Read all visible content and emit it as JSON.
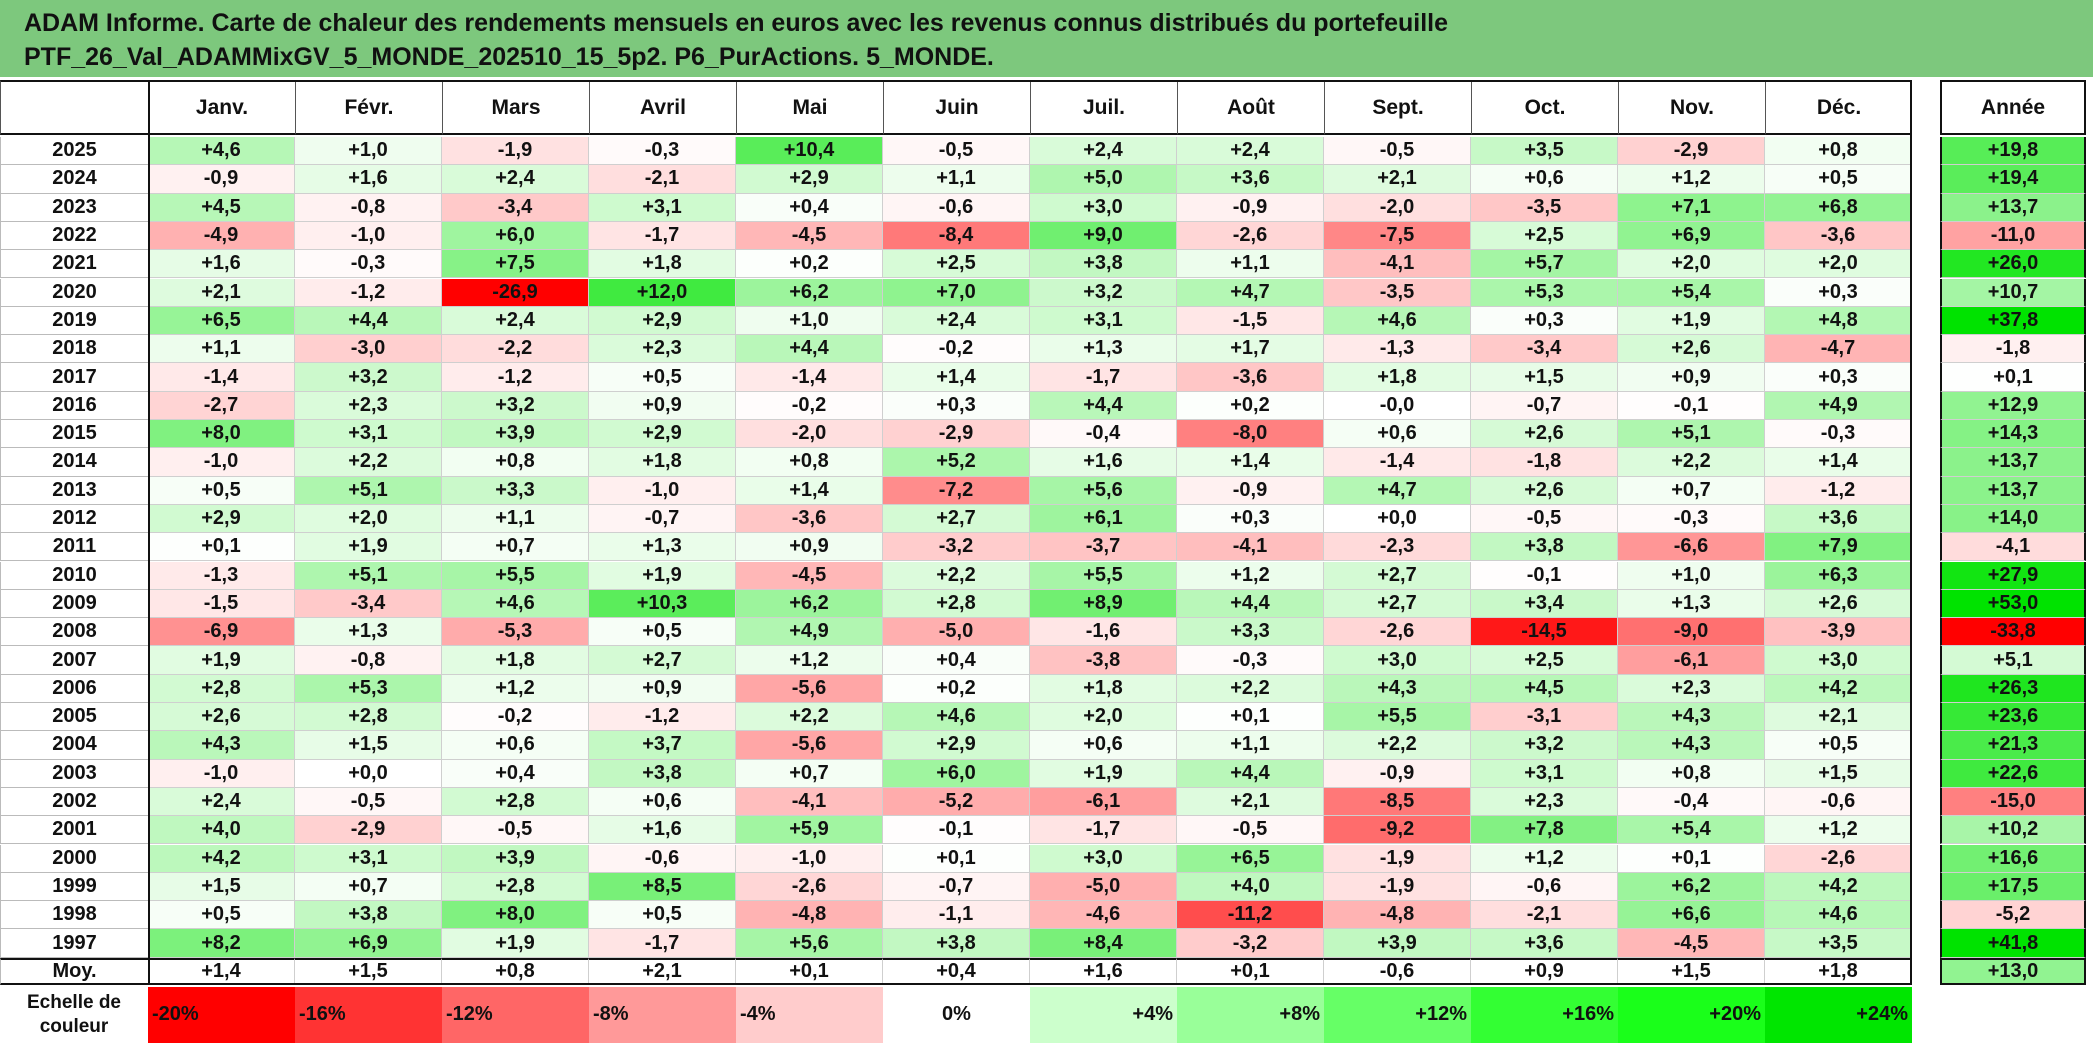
{
  "title_line1": "ADAM Informe. Carte de chaleur des rendements mensuels en euros avec les revenus connus distribués du portefeuille",
  "title_line2": "PTF_26_Val_ADAMMixGV_5_MONDE_202510_15_5p2. P6_PurActions. 5_MONDE.",
  "chart_data": {
    "type": "heatmap",
    "months": [
      "Janv.",
      "Févr.",
      "Mars",
      "Avril",
      "Mai",
      "Juin",
      "Juil.",
      "Août",
      "Sept.",
      "Oct.",
      "Nov.",
      "Déc."
    ],
    "year_header": "Année",
    "rows": [
      {
        "year": "2025",
        "values": [
          "+4,6",
          "+1,0",
          "-1,9",
          "-0,3",
          "+10,4",
          "-0,5",
          "+2,4",
          "+2,4",
          "-0,5",
          "+3,5",
          "-2,9",
          "+0,8"
        ],
        "annual": "+19,8"
      },
      {
        "year": "2024",
        "values": [
          "-0,9",
          "+1,6",
          "+2,4",
          "-2,1",
          "+2,9",
          "+1,1",
          "+5,0",
          "+3,6",
          "+2,1",
          "+0,6",
          "+1,2",
          "+0,5"
        ],
        "annual": "+19,4"
      },
      {
        "year": "2023",
        "values": [
          "+4,5",
          "-0,8",
          "-3,4",
          "+3,1",
          "+0,4",
          "-0,6",
          "+3,0",
          "-0,9",
          "-2,0",
          "-3,5",
          "+7,1",
          "+6,8"
        ],
        "annual": "+13,7"
      },
      {
        "year": "2022",
        "values": [
          "-4,9",
          "-1,0",
          "+6,0",
          "-1,7",
          "-4,5",
          "-8,4",
          "+9,0",
          "-2,6",
          "-7,5",
          "+2,5",
          "+6,9",
          "-3,6"
        ],
        "annual": "-11,0"
      },
      {
        "year": "2021",
        "values": [
          "+1,6",
          "-0,3",
          "+7,5",
          "+1,8",
          "+0,2",
          "+2,5",
          "+3,8",
          "+1,1",
          "-4,1",
          "+5,7",
          "+2,0",
          "+2,0"
        ],
        "annual": "+26,0"
      },
      {
        "year": "2020",
        "values": [
          "+2,1",
          "-1,2",
          "-26,9",
          "+12,0",
          "+6,2",
          "+7,0",
          "+3,2",
          "+4,7",
          "-3,5",
          "+5,3",
          "+5,4",
          "+0,3"
        ],
        "annual": "+10,7"
      },
      {
        "year": "2019",
        "values": [
          "+6,5",
          "+4,4",
          "+2,4",
          "+2,9",
          "+1,0",
          "+2,4",
          "+3,1",
          "-1,5",
          "+4,6",
          "+0,3",
          "+1,9",
          "+4,8"
        ],
        "annual": "+37,8"
      },
      {
        "year": "2018",
        "values": [
          "+1,1",
          "-3,0",
          "-2,2",
          "+2,3",
          "+4,4",
          "-0,2",
          "+1,3",
          "+1,7",
          "-1,3",
          "-3,4",
          "+2,6",
          "-4,7"
        ],
        "annual": "-1,8"
      },
      {
        "year": "2017",
        "values": [
          "-1,4",
          "+3,2",
          "-1,2",
          "+0,5",
          "-1,4",
          "+1,4",
          "-1,7",
          "-3,6",
          "+1,8",
          "+1,5",
          "+0,9",
          "+0,3"
        ],
        "annual": "+0,1"
      },
      {
        "year": "2016",
        "values": [
          "-2,7",
          "+2,3",
          "+3,2",
          "+0,9",
          "-0,2",
          "+0,3",
          "+4,4",
          "+0,2",
          "-0,0",
          "-0,7",
          "-0,1",
          "+4,9"
        ],
        "annual": "+12,9"
      },
      {
        "year": "2015",
        "values": [
          "+8,0",
          "+3,1",
          "+3,9",
          "+2,9",
          "-2,0",
          "-2,9",
          "-0,4",
          "-8,0",
          "+0,6",
          "+2,6",
          "+5,1",
          "-0,3"
        ],
        "annual": "+14,3"
      },
      {
        "year": "2014",
        "values": [
          "-1,0",
          "+2,2",
          "+0,8",
          "+1,8",
          "+0,8",
          "+5,2",
          "+1,6",
          "+1,4",
          "-1,4",
          "-1,8",
          "+2,2",
          "+1,4"
        ],
        "annual": "+13,7"
      },
      {
        "year": "2013",
        "values": [
          "+0,5",
          "+5,1",
          "+3,3",
          "-1,0",
          "+1,4",
          "-7,2",
          "+5,6",
          "-0,9",
          "+4,7",
          "+2,6",
          "+0,7",
          "-1,2"
        ],
        "annual": "+13,7"
      },
      {
        "year": "2012",
        "values": [
          "+2,9",
          "+2,0",
          "+1,1",
          "-0,7",
          "-3,6",
          "+2,7",
          "+6,1",
          "+0,3",
          "+0,0",
          "-0,5",
          "-0,3",
          "+3,6"
        ],
        "annual": "+14,0"
      },
      {
        "year": "2011",
        "values": [
          "+0,1",
          "+1,9",
          "+0,7",
          "+1,3",
          "+0,9",
          "-3,2",
          "-3,7",
          "-4,1",
          "-2,3",
          "+3,8",
          "-6,6",
          "+7,9"
        ],
        "annual": "-4,1"
      },
      {
        "year": "2010",
        "values": [
          "-1,3",
          "+5,1",
          "+5,5",
          "+1,9",
          "-4,5",
          "+2,2",
          "+5,5",
          "+1,2",
          "+2,7",
          "-0,1",
          "+1,0",
          "+6,3"
        ],
        "annual": "+27,9"
      },
      {
        "year": "2009",
        "values": [
          "-1,5",
          "-3,4",
          "+4,6",
          "+10,3",
          "+6,2",
          "+2,8",
          "+8,9",
          "+4,4",
          "+2,7",
          "+3,4",
          "+1,3",
          "+2,6"
        ],
        "annual": "+53,0"
      },
      {
        "year": "2008",
        "values": [
          "-6,9",
          "+1,3",
          "-5,3",
          "+0,5",
          "+4,9",
          "-5,0",
          "-1,6",
          "+3,3",
          "-2,6",
          "-14,5",
          "-9,0",
          "-3,9"
        ],
        "annual": "-33,8"
      },
      {
        "year": "2007",
        "values": [
          "+1,9",
          "-0,8",
          "+1,8",
          "+2,7",
          "+1,2",
          "+0,4",
          "-3,8",
          "-0,3",
          "+3,0",
          "+2,5",
          "-6,1",
          "+3,0"
        ],
        "annual": "+5,1"
      },
      {
        "year": "2006",
        "values": [
          "+2,8",
          "+5,3",
          "+1,2",
          "+0,9",
          "-5,6",
          "+0,2",
          "+1,8",
          "+2,2",
          "+4,3",
          "+4,5",
          "+2,3",
          "+4,2"
        ],
        "annual": "+26,3"
      },
      {
        "year": "2005",
        "values": [
          "+2,6",
          "+2,8",
          "-0,2",
          "-1,2",
          "+2,2",
          "+4,6",
          "+2,0",
          "+0,1",
          "+5,5",
          "-3,1",
          "+4,3",
          "+2,1"
        ],
        "annual": "+23,6"
      },
      {
        "year": "2004",
        "values": [
          "+4,3",
          "+1,5",
          "+0,6",
          "+3,7",
          "-5,6",
          "+2,9",
          "+0,6",
          "+1,1",
          "+2,2",
          "+3,2",
          "+4,3",
          "+0,5"
        ],
        "annual": "+21,3"
      },
      {
        "year": "2003",
        "values": [
          "-1,0",
          "+0,0",
          "+0,4",
          "+3,8",
          "+0,7",
          "+6,0",
          "+1,9",
          "+4,4",
          "-0,9",
          "+3,1",
          "+0,8",
          "+1,5"
        ],
        "annual": "+22,6"
      },
      {
        "year": "2002",
        "values": [
          "+2,4",
          "-0,5",
          "+2,8",
          "+0,6",
          "-4,1",
          "-5,2",
          "-6,1",
          "+2,1",
          "-8,5",
          "+2,3",
          "-0,4",
          "-0,6"
        ],
        "annual": "-15,0"
      },
      {
        "year": "2001",
        "values": [
          "+4,0",
          "-2,9",
          "-0,5",
          "+1,6",
          "+5,9",
          "-0,1",
          "-1,7",
          "-0,5",
          "-9,2",
          "+7,8",
          "+5,4",
          "+1,2"
        ],
        "annual": "+10,2"
      },
      {
        "year": "2000",
        "values": [
          "+4,2",
          "+3,1",
          "+3,9",
          "-0,6",
          "-1,0",
          "+0,1",
          "+3,0",
          "+6,5",
          "-1,9",
          "+1,2",
          "+0,1",
          "-2,6"
        ],
        "annual": "+16,6"
      },
      {
        "year": "1999",
        "values": [
          "+1,5",
          "+0,7",
          "+2,8",
          "+8,5",
          "-2,6",
          "-0,7",
          "-5,0",
          "+4,0",
          "-1,9",
          "-0,6",
          "+6,2",
          "+4,2"
        ],
        "annual": "+17,5"
      },
      {
        "year": "1998",
        "values": [
          "+0,5",
          "+3,8",
          "+8,0",
          "+0,5",
          "-4,8",
          "-1,1",
          "-4,6",
          "-11,2",
          "-4,8",
          "-2,1",
          "+6,6",
          "+4,6"
        ],
        "annual": "-5,2"
      },
      {
        "year": "1997",
        "values": [
          "+8,2",
          "+6,9",
          "+1,9",
          "-1,7",
          "+5,6",
          "+3,8",
          "+8,4",
          "-3,2",
          "+3,9",
          "+3,6",
          "-4,5",
          "+3,5"
        ],
        "annual": "+41,8"
      }
    ],
    "average": {
      "label": "Moy.",
      "values": [
        "+1,4",
        "+1,5",
        "+0,8",
        "+2,1",
        "+0,1",
        "+0,4",
        "+1,6",
        "+0,1",
        "-0,6",
        "+0,9",
        "+1,5",
        "+1,8"
      ],
      "annual": "+13,0"
    },
    "scale": {
      "label_line1": "Echelle de",
      "label_line2": "couleur",
      "steps": [
        {
          "text": "-20%",
          "value": -20,
          "color": "#ff0000"
        },
        {
          "text": "-16%",
          "value": -16,
          "color": "#ff3333"
        },
        {
          "text": "-12%",
          "value": -12,
          "color": "#ff6666"
        },
        {
          "text": "-8%",
          "value": -8,
          "color": "#ff9999"
        },
        {
          "text": "-4%",
          "value": -4,
          "color": "#ffcccc"
        },
        {
          "text": "0%",
          "value": 0,
          "color": "#ffffff"
        },
        {
          "text": "+4%",
          "value": 4,
          "color": "#ccffcc"
        },
        {
          "text": "+8%",
          "value": 8,
          "color": "#99ff99"
        },
        {
          "text": "+12%",
          "value": 12,
          "color": "#66ff66"
        },
        {
          "text": "+16%",
          "value": 16,
          "color": "#33ff33"
        },
        {
          "text": "+20%",
          "value": 20,
          "color": "#1aff1a"
        },
        {
          "text": "+24%",
          "value": 24,
          "color": "#00e600"
        }
      ]
    }
  }
}
